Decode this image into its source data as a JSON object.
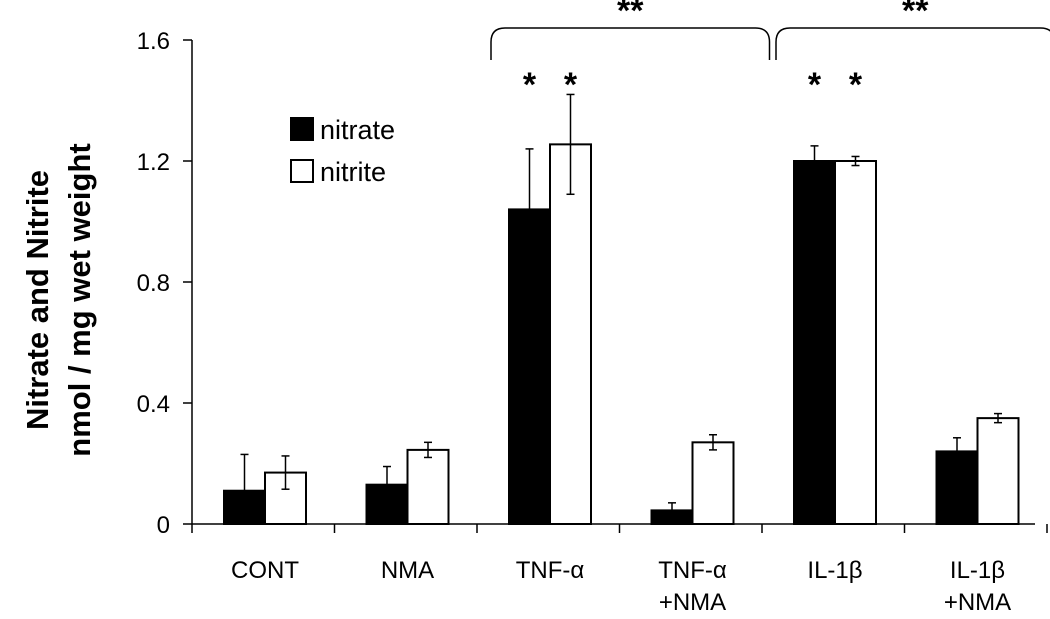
{
  "chart_data": {
    "type": "bar",
    "ylabel_lines": [
      "Nitrate and Nitrite",
      "nmol / mg wet weight"
    ],
    "ylim": [
      0,
      1.6
    ],
    "yticks": [
      "0",
      "0.4",
      "0.8",
      "1.2",
      "1.6"
    ],
    "ytick_values": [
      0,
      0.4,
      0.8,
      1.2,
      1.6
    ],
    "categories": [
      [
        "CONT"
      ],
      [
        "NMA"
      ],
      [
        "TNF-α"
      ],
      [
        "TNF-α",
        "+NMA"
      ],
      [
        "IL-1β"
      ],
      [
        "IL-1β",
        "+NMA"
      ]
    ],
    "series": [
      {
        "name": "nitrate",
        "color": "#000000",
        "values": [
          0.11,
          0.13,
          1.04,
          0.045,
          1.2,
          0.24
        ],
        "errors": [
          0.12,
          0.06,
          0.2,
          0.025,
          0.05,
          0.045
        ]
      },
      {
        "name": "nitrite",
        "color": "#ffffff",
        "values": [
          0.17,
          0.245,
          1.255,
          0.27,
          1.2,
          0.35
        ],
        "errors": [
          0.055,
          0.025,
          0.165,
          0.025,
          0.015,
          0.015
        ]
      }
    ],
    "legend": {
      "position": "top-left"
    },
    "grid": false,
    "annotations": {
      "single_marker": "*",
      "single_star_categories": [
        2,
        4
      ],
      "bracket_marker": "**",
      "brackets": [
        [
          2,
          3
        ],
        [
          4,
          5
        ]
      ]
    }
  }
}
